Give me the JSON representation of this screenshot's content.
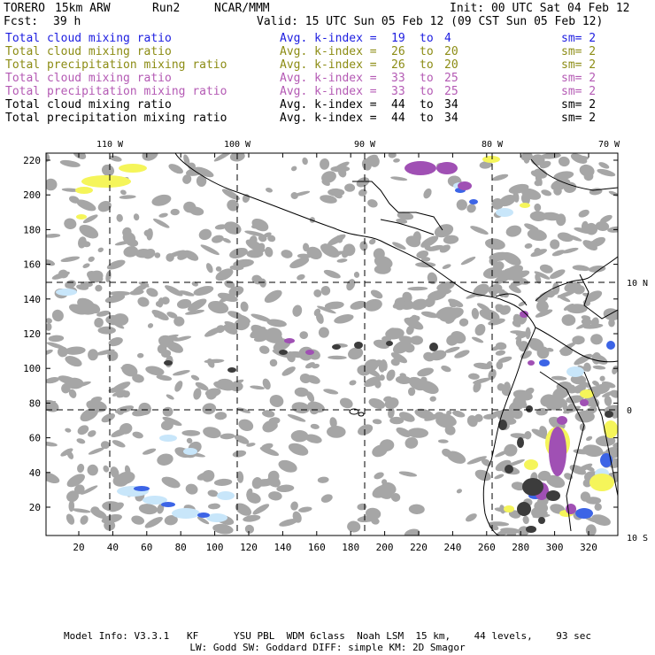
{
  "header": {
    "model": "TORERO",
    "resolution": "15km ARW",
    "run": "Run2",
    "org": "NCAR/MMM",
    "init": "Init: 00 UTC Sat 04 Feb 12",
    "fcst_label": "Fcst:",
    "fcst_value": "39 h",
    "valid": "Valid: 15 UTC Sun 05 Feb 12 (09 CST Sun 05 Feb 12)"
  },
  "legend": [
    {
      "field": "Total cloud mixing ratio",
      "avg": "Avg. k-index =",
      "k1": "19",
      "to": "to",
      "k2": "4",
      "sm": "sm= 2",
      "color": "#1d1de0"
    },
    {
      "field": "Total cloud mixing ratio",
      "avg": "Avg. k-index =",
      "k1": "26",
      "to": "to",
      "k2": "20",
      "sm": "sm= 2",
      "color": "#8c8c14"
    },
    {
      "field": "Total precipitation mixing ratio",
      "avg": "Avg. k-index =",
      "k1": "26",
      "to": "to",
      "k2": "20",
      "sm": "sm= 2",
      "color": "#8c8c14"
    },
    {
      "field": "Total cloud mixing ratio",
      "avg": "Avg. k-index =",
      "k1": "33",
      "to": "to",
      "k2": "25",
      "sm": "sm= 2",
      "color": "#b45ab4"
    },
    {
      "field": "Total precipitation mixing ratio",
      "avg": "Avg. k-index =",
      "k1": "33",
      "to": "to",
      "k2": "25",
      "sm": "sm= 2",
      "color": "#b45ab4"
    },
    {
      "field": "Total cloud mixing ratio",
      "avg": "Avg. k-index =",
      "k1": "44",
      "to": "to",
      "k2": "34",
      "sm": "sm= 2",
      "color": "#000000"
    },
    {
      "field": "Total precipitation mixing ratio",
      "avg": "Avg. k-index =",
      "k1": "44",
      "to": "to",
      "k2": "34",
      "sm": "sm= 2",
      "color": "#000000"
    }
  ],
  "map": {
    "lon_labels": [
      "110 W",
      "100 W",
      "90 W",
      "80 W",
      "70 W"
    ],
    "lat_labels": [
      "10 N",
      "0",
      "10 S"
    ],
    "y_ticks": [
      "220",
      "200",
      "180",
      "160",
      "140",
      "120",
      "100",
      "80",
      "60",
      "40",
      "20"
    ],
    "x_ticks": [
      "20",
      "40",
      "60",
      "80",
      "100",
      "120",
      "140",
      "160",
      "180",
      "200",
      "220",
      "240",
      "260",
      "280",
      "300",
      "320"
    ],
    "colors": {
      "gray": "#a6a6a6",
      "dark": "#3c3c3c",
      "yellow": "#f5f55a",
      "purple": "#a050b4",
      "lightblue": "#c8e6fa",
      "blue": "#3c64e6",
      "coast": "#000000"
    }
  },
  "footer": {
    "line1": "Model Info: V3.3.1   KF      YSU PBL  WDM 6class  Noah LSM  15 km,    44 levels,    93 sec",
    "line2": "LW: Godd SW: Goddard DIFF: simple KM: 2D Smagor"
  }
}
